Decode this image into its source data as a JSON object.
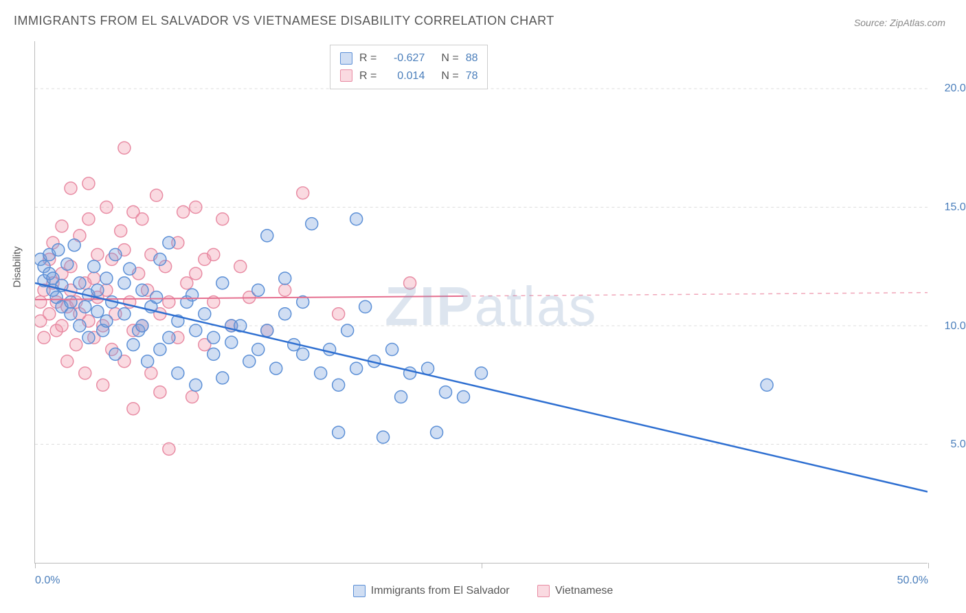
{
  "title": "IMMIGRANTS FROM EL SALVADOR VS VIETNAMESE DISABILITY CORRELATION CHART",
  "source": "Source: ZipAtlas.com",
  "ylabel": "Disability",
  "watermark": "ZIPatlas",
  "chart": {
    "type": "scatter",
    "background_color": "#ffffff",
    "grid_color": "#dddddd",
    "axis_color": "#bbbbbb",
    "xlim": [
      0,
      50
    ],
    "ylim": [
      0,
      22
    ],
    "ytick_values": [
      5,
      10,
      15,
      20
    ],
    "ytick_labels": [
      "5.0%",
      "10.0%",
      "15.0%",
      "20.0%"
    ],
    "xtick_values": [
      0,
      25,
      50
    ],
    "xtick_label_left": "0.0%",
    "xtick_label_right": "50.0%",
    "ytick_label_color": "#4a7ebb",
    "xtick_label_color": "#4a7ebb",
    "marker_radius": 9,
    "marker_stroke_width": 1.5,
    "series": [
      {
        "name": "Immigrants from El Salvador",
        "fill": "rgba(120,160,220,0.35)",
        "stroke": "#5b8fd6",
        "R": "-0.627",
        "N": "88",
        "trend": {
          "x1": 0,
          "y1": 11.8,
          "x2": 50,
          "y2": 3.0,
          "color": "#2e6fd1",
          "width": 2.5,
          "dash": ""
        },
        "points": [
          [
            0.3,
            12.8
          ],
          [
            0.5,
            12.5
          ],
          [
            0.5,
            11.9
          ],
          [
            0.8,
            12.2
          ],
          [
            0.8,
            13.0
          ],
          [
            1.0,
            11.5
          ],
          [
            1.0,
            12.0
          ],
          [
            1.2,
            11.2
          ],
          [
            1.3,
            13.2
          ],
          [
            1.5,
            10.8
          ],
          [
            1.5,
            11.7
          ],
          [
            1.8,
            12.6
          ],
          [
            2.0,
            11.0
          ],
          [
            2.0,
            10.5
          ],
          [
            2.2,
            13.4
          ],
          [
            2.5,
            11.8
          ],
          [
            2.5,
            10.0
          ],
          [
            2.8,
            10.8
          ],
          [
            3.0,
            11.3
          ],
          [
            3.0,
            9.5
          ],
          [
            3.3,
            12.5
          ],
          [
            3.5,
            10.6
          ],
          [
            3.5,
            11.5
          ],
          [
            3.8,
            9.8
          ],
          [
            4.0,
            10.2
          ],
          [
            4.0,
            12.0
          ],
          [
            4.3,
            11.0
          ],
          [
            4.5,
            13.0
          ],
          [
            4.5,
            8.8
          ],
          [
            5.0,
            10.5
          ],
          [
            5.0,
            11.8
          ],
          [
            5.3,
            12.4
          ],
          [
            5.5,
            9.2
          ],
          [
            5.8,
            9.8
          ],
          [
            6.0,
            10.0
          ],
          [
            6.0,
            11.5
          ],
          [
            6.3,
            8.5
          ],
          [
            6.5,
            10.8
          ],
          [
            6.8,
            11.2
          ],
          [
            7.0,
            9.0
          ],
          [
            7.0,
            12.8
          ],
          [
            7.5,
            13.5
          ],
          [
            7.5,
            9.5
          ],
          [
            8.0,
            10.2
          ],
          [
            8.0,
            8.0
          ],
          [
            8.5,
            11.0
          ],
          [
            8.8,
            11.3
          ],
          [
            9.0,
            9.8
          ],
          [
            9.0,
            7.5
          ],
          [
            9.5,
            10.5
          ],
          [
            10.0,
            8.8
          ],
          [
            10.0,
            9.5
          ],
          [
            10.5,
            11.8
          ],
          [
            10.5,
            7.8
          ],
          [
            11.0,
            10.0
          ],
          [
            11.0,
            9.3
          ],
          [
            11.5,
            10.0
          ],
          [
            12.0,
            8.5
          ],
          [
            12.5,
            11.5
          ],
          [
            12.5,
            9.0
          ],
          [
            13.0,
            13.8
          ],
          [
            13.0,
            9.8
          ],
          [
            13.5,
            8.2
          ],
          [
            14.0,
            10.5
          ],
          [
            14.0,
            12.0
          ],
          [
            14.5,
            9.2
          ],
          [
            15.0,
            8.8
          ],
          [
            15.0,
            11.0
          ],
          [
            15.5,
            14.3
          ],
          [
            16.0,
            8.0
          ],
          [
            16.5,
            9.0
          ],
          [
            17.0,
            7.5
          ],
          [
            17.0,
            5.5
          ],
          [
            17.5,
            9.8
          ],
          [
            18.0,
            8.2
          ],
          [
            18.0,
            14.5
          ],
          [
            18.5,
            10.8
          ],
          [
            19.0,
            8.5
          ],
          [
            19.5,
            5.3
          ],
          [
            20.0,
            9.0
          ],
          [
            20.5,
            7.0
          ],
          [
            21.0,
            8.0
          ],
          [
            22.0,
            8.2
          ],
          [
            22.5,
            5.5
          ],
          [
            23.0,
            7.2
          ],
          [
            24.0,
            7.0
          ],
          [
            25.0,
            8.0
          ],
          [
            41.0,
            7.5
          ]
        ]
      },
      {
        "name": "Vietnamese",
        "fill": "rgba(240,150,170,0.35)",
        "stroke": "#e88ba3",
        "R": "0.014",
        "N": "78",
        "trend_solid": {
          "x1": 0,
          "y1": 11.1,
          "x2": 24,
          "y2": 11.25,
          "color": "#e56f8f",
          "width": 2,
          "dash": ""
        },
        "trend_dash": {
          "x1": 24,
          "y1": 11.25,
          "x2": 50,
          "y2": 11.4,
          "color": "#f0a5b8",
          "width": 1.5,
          "dash": "6,6"
        },
        "points": [
          [
            0.3,
            11.0
          ],
          [
            0.3,
            10.2
          ],
          [
            0.5,
            11.5
          ],
          [
            0.5,
            9.5
          ],
          [
            0.8,
            12.8
          ],
          [
            0.8,
            10.5
          ],
          [
            1.0,
            11.8
          ],
          [
            1.0,
            13.5
          ],
          [
            1.2,
            9.8
          ],
          [
            1.2,
            11.0
          ],
          [
            1.5,
            10.0
          ],
          [
            1.5,
            12.2
          ],
          [
            1.5,
            14.2
          ],
          [
            1.8,
            10.8
          ],
          [
            1.8,
            8.5
          ],
          [
            2.0,
            11.5
          ],
          [
            2.0,
            12.5
          ],
          [
            2.0,
            15.8
          ],
          [
            2.3,
            9.2
          ],
          [
            2.3,
            11.0
          ],
          [
            2.5,
            13.8
          ],
          [
            2.5,
            10.5
          ],
          [
            2.8,
            11.8
          ],
          [
            2.8,
            8.0
          ],
          [
            3.0,
            14.5
          ],
          [
            3.0,
            10.2
          ],
          [
            3.0,
            16.0
          ],
          [
            3.3,
            12.0
          ],
          [
            3.3,
            9.5
          ],
          [
            3.5,
            11.2
          ],
          [
            3.5,
            13.0
          ],
          [
            3.8,
            10.0
          ],
          [
            3.8,
            7.5
          ],
          [
            4.0,
            15.0
          ],
          [
            4.0,
            11.5
          ],
          [
            4.3,
            9.0
          ],
          [
            4.3,
            12.8
          ],
          [
            4.5,
            10.5
          ],
          [
            4.8,
            14.0
          ],
          [
            5.0,
            13.2
          ],
          [
            5.0,
            8.5
          ],
          [
            5.0,
            17.5
          ],
          [
            5.3,
            11.0
          ],
          [
            5.5,
            14.8
          ],
          [
            5.5,
            9.8
          ],
          [
            5.5,
            6.5
          ],
          [
            5.8,
            12.2
          ],
          [
            6.0,
            10.0
          ],
          [
            6.0,
            14.5
          ],
          [
            6.3,
            11.5
          ],
          [
            6.5,
            8.0
          ],
          [
            6.5,
            13.0
          ],
          [
            6.8,
            15.5
          ],
          [
            7.0,
            10.5
          ],
          [
            7.0,
            7.2
          ],
          [
            7.3,
            12.5
          ],
          [
            7.5,
            11.0
          ],
          [
            7.5,
            4.8
          ],
          [
            8.0,
            13.5
          ],
          [
            8.0,
            9.5
          ],
          [
            8.3,
            14.8
          ],
          [
            8.5,
            11.8
          ],
          [
            8.8,
            7.0
          ],
          [
            9.0,
            12.2
          ],
          [
            9.0,
            15.0
          ],
          [
            9.5,
            12.8
          ],
          [
            9.5,
            9.2
          ],
          [
            10.0,
            13.0
          ],
          [
            10.0,
            11.0
          ],
          [
            10.5,
            14.5
          ],
          [
            11.0,
            10.0
          ],
          [
            11.5,
            12.5
          ],
          [
            12.0,
            11.2
          ],
          [
            13.0,
            9.8
          ],
          [
            14.0,
            11.5
          ],
          [
            15.0,
            15.6
          ],
          [
            17.0,
            10.5
          ],
          [
            21.0,
            11.8
          ]
        ]
      }
    ]
  },
  "legend": {
    "series1_label": "Immigrants from El Salvador",
    "series2_label": "Vietnamese"
  }
}
